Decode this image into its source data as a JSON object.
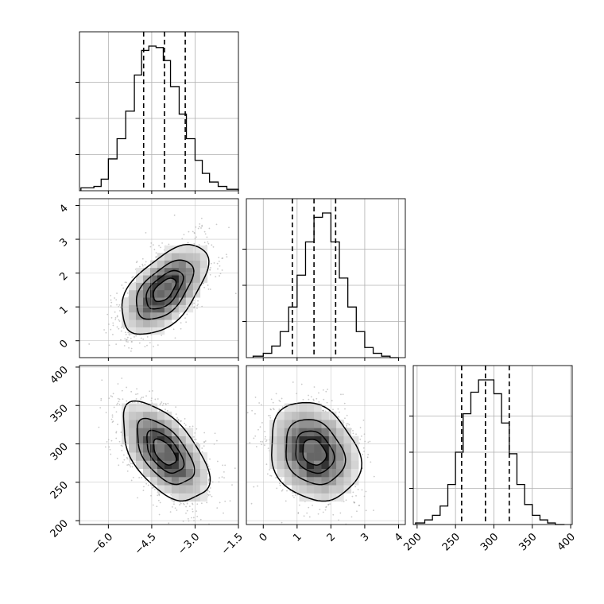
{
  "chart_data": {
    "type": "corner",
    "parameters": [
      {
        "range": [
          -7.0,
          -1.5
        ],
        "ticks": [
          -6.0,
          -4.5,
          -3.0,
          -1.5
        ],
        "tick_labels": [
          "−6.0",
          "−4.5",
          "−3.0",
          "−1.5"
        ],
        "quantiles": [
          -4.78,
          -4.06,
          -3.34
        ],
        "histogram": {
          "bins": [
            -6.95,
            -6.5,
            -6.25,
            -6.0,
            -5.7,
            -5.4,
            -5.1,
            -4.85,
            -4.6,
            -4.35,
            -4.1,
            -3.85,
            -3.55,
            -3.3,
            -3.0,
            -2.75,
            -2.5,
            -2.2,
            -1.9,
            -1.5
          ],
          "counts": [
            2,
            3,
            8,
            22,
            36,
            55,
            80,
            97,
            100,
            99,
            90,
            72,
            53,
            36,
            21,
            12,
            6,
            3,
            1
          ]
        }
      },
      {
        "range": [
          -0.5,
          4.2
        ],
        "ticks": [
          0,
          1,
          2,
          3,
          4
        ],
        "tick_labels": [
          "0",
          "1",
          "2",
          "3",
          "4"
        ],
        "quantiles": [
          0.86,
          1.5,
          2.14
        ],
        "histogram": {
          "bins": [
            -0.3,
            0.0,
            0.25,
            0.5,
            0.75,
            1.0,
            1.25,
            1.5,
            1.75,
            2.0,
            2.25,
            2.5,
            2.75,
            3.0,
            3.25,
            3.5,
            3.75,
            4.0
          ],
          "counts": [
            1,
            3,
            8,
            18,
            35,
            57,
            80,
            97,
            100,
            80,
            55,
            35,
            18,
            7,
            3,
            1,
            0
          ]
        }
      },
      {
        "range": [
          195,
          402
        ],
        "ticks": [
          200,
          250,
          300,
          350,
          400
        ],
        "tick_labels": [
          "200",
          "250",
          "300",
          "350",
          "400"
        ],
        "quantiles": [
          258,
          289,
          320
        ],
        "histogram": {
          "bins": [
            198,
            210,
            220,
            230,
            240,
            250,
            260,
            270,
            280,
            290,
            300,
            310,
            320,
            330,
            340,
            350,
            360,
            370,
            380,
            392
          ],
          "counts": [
            1,
            3,
            6,
            12,
            26,
            47,
            72,
            86,
            94,
            94,
            85,
            66,
            46,
            26,
            13,
            6,
            3,
            1,
            0
          ]
        }
      }
    ],
    "pairs": [
      {
        "x": 0,
        "y": 1,
        "mean": [
          -4.06,
          1.5
        ],
        "sd": [
          0.72,
          0.64
        ],
        "corr": 0.55
      },
      {
        "x": 0,
        "y": 2,
        "mean": [
          -4.06,
          289
        ],
        "sd": [
          0.72,
          31
        ],
        "corr": -0.55
      },
      {
        "x": 1,
        "y": 2,
        "mean": [
          1.5,
          289
        ],
        "sd": [
          0.64,
          31
        ],
        "corr": -0.2
      }
    ],
    "contour_levels_sigma": [
      0.5,
      1.0,
      1.5,
      2.0
    ],
    "grid": true
  }
}
